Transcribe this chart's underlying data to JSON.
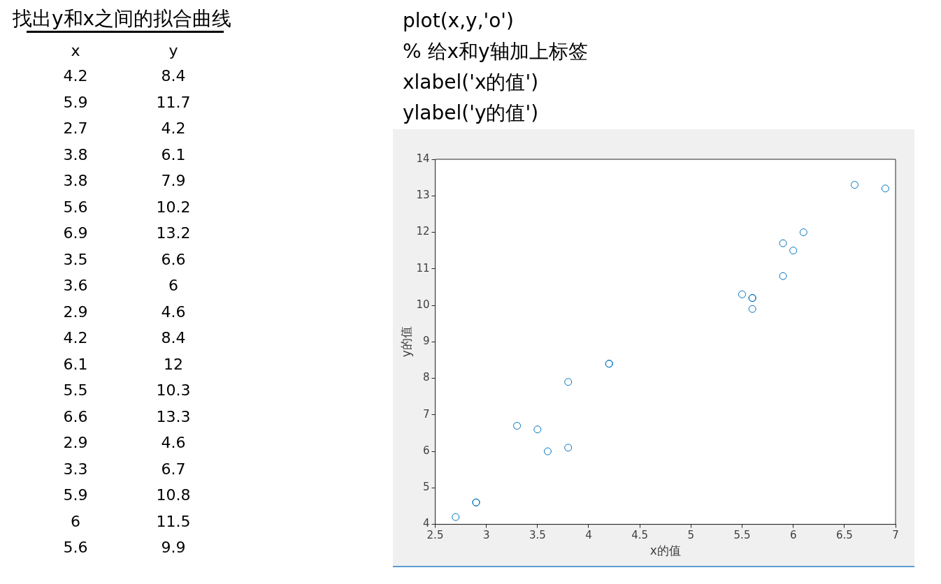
{
  "chart_data": [
    {
      "type": "other",
      "title": "找出y和x之间的拟合曲线",
      "annotations": [
        "x",
        "y",
        "4.2",
        "8.4",
        "5.9",
        "11.7",
        "2.7",
        "4.2",
        "3.8",
        "6.1",
        "3.8",
        "7.9",
        "5.6",
        "10.2",
        "6.9",
        "13.2",
        "3.5",
        "6.6",
        "3.6",
        "6",
        "2.9",
        "4.6",
        "4.2",
        "8.4",
        "6.1",
        "12",
        "5.5",
        "10.3",
        "6.6",
        "13.3",
        "2.9",
        "4.6",
        "3.3",
        "6.7",
        "5.9",
        "10.8",
        "6",
        "11.5",
        "5.6",
        "9.9"
      ]
    },
    {
      "type": "scatter",
      "xlabel": "x的值",
      "ylabel": "y的值",
      "annotations": [
        "plot(x,y,'o')",
        "% 给x和y轴加上标签",
        "xlabel('x的值')",
        "ylabel('y的值')"
      ],
      "x": [
        4.2,
        5.9,
        2.7,
        3.8,
        3.8,
        5.6,
        6.9,
        3.5,
        3.6,
        2.9,
        4.2,
        6.1,
        5.5,
        6.6,
        2.9,
        3.3,
        5.9,
        6,
        5.6,
        5.6
      ],
      "values": [
        8.4,
        11.7,
        4.2,
        6.1,
        7.9,
        10.2,
        13.2,
        6.6,
        6,
        4.6,
        8.4,
        12,
        10.3,
        13.3,
        4.6,
        6.7,
        10.8,
        11.5,
        9.9,
        10.2
      ],
      "color": "#0072bd",
      "marker": "circle",
      "xlim": [
        2.5,
        7
      ],
      "xticks": [
        2.5,
        3,
        3.5,
        4,
        4.5,
        5,
        5.5,
        6,
        6.5,
        7
      ],
      "ylim": [
        4,
        14
      ],
      "yticks": [
        4,
        5,
        6,
        7,
        8,
        9,
        10,
        11,
        12,
        13,
        14
      ]
    }
  ]
}
